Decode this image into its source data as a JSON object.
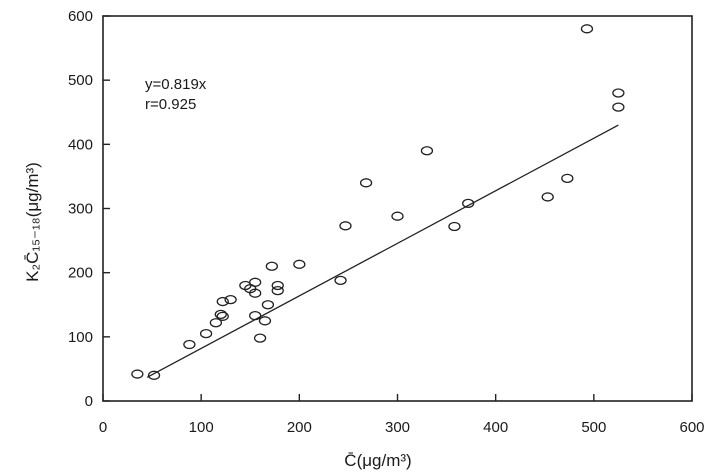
{
  "chart_data": {
    "type": "scatter",
    "xlabel": "C̄(μg/m³)",
    "ylabel": "K₂C̄₁₅₋₁₈(μg/m³)",
    "xlim": [
      0,
      600
    ],
    "ylim": [
      0,
      600
    ],
    "xticks": [
      "0",
      "100",
      "200",
      "300",
      "400",
      "500",
      "600"
    ],
    "yticks": [
      "0",
      "100",
      "200",
      "300",
      "400",
      "500",
      "600"
    ],
    "annotations": [
      "y=0.819x",
      "r=0.925"
    ],
    "fit_line": {
      "slope": 0.819,
      "x_range": [
        45,
        525
      ]
    },
    "points": [
      {
        "x": 35,
        "y": 42
      },
      {
        "x": 52,
        "y": 40
      },
      {
        "x": 88,
        "y": 88
      },
      {
        "x": 105,
        "y": 105
      },
      {
        "x": 115,
        "y": 122
      },
      {
        "x": 120,
        "y": 135
      },
      {
        "x": 122,
        "y": 132
      },
      {
        "x": 122,
        "y": 155
      },
      {
        "x": 130,
        "y": 158
      },
      {
        "x": 145,
        "y": 180
      },
      {
        "x": 150,
        "y": 175
      },
      {
        "x": 155,
        "y": 185
      },
      {
        "x": 155,
        "y": 168
      },
      {
        "x": 155,
        "y": 133
      },
      {
        "x": 160,
        "y": 98
      },
      {
        "x": 165,
        "y": 125
      },
      {
        "x": 168,
        "y": 150
      },
      {
        "x": 172,
        "y": 210
      },
      {
        "x": 178,
        "y": 180
      },
      {
        "x": 178,
        "y": 172
      },
      {
        "x": 200,
        "y": 213
      },
      {
        "x": 242,
        "y": 188
      },
      {
        "x": 247,
        "y": 273
      },
      {
        "x": 268,
        "y": 340
      },
      {
        "x": 300,
        "y": 288
      },
      {
        "x": 330,
        "y": 390
      },
      {
        "x": 358,
        "y": 272
      },
      {
        "x": 372,
        "y": 308
      },
      {
        "x": 453,
        "y": 318
      },
      {
        "x": 473,
        "y": 347
      },
      {
        "x": 493,
        "y": 580
      },
      {
        "x": 525,
        "y": 480
      },
      {
        "x": 525,
        "y": 458
      }
    ]
  }
}
